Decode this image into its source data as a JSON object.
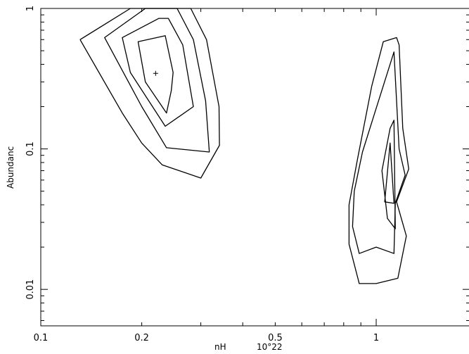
{
  "chart_data": {
    "type": "contour",
    "xlabel": "nH",
    "xlabel_unit": "10^22",
    "xlabel_unit_display": "10°22",
    "ylabel": "Abundanc",
    "x_scale": "log",
    "y_scale": "log",
    "xlim": [
      0.1,
      1.9
    ],
    "ylim": [
      0.0055,
      1.0
    ],
    "x_ticks": [
      {
        "value": 0.1,
        "label": "0.1"
      },
      {
        "value": 0.2,
        "label": "0.2"
      },
      {
        "value": 0.5,
        "label": "0.5"
      },
      {
        "value": 1,
        "label": "1"
      }
    ],
    "y_ticks": [
      {
        "value": 0.01,
        "label": "0.01"
      },
      {
        "value": 0.1,
        "label": "0.1"
      },
      {
        "value": 1,
        "label": "1"
      }
    ],
    "best_fit": {
      "marker": "+",
      "x": 0.22,
      "y": 0.345
    },
    "contours": [
      {
        "name": "left-inner",
        "closed": true,
        "points": [
          [
            0.195,
            0.58
          ],
          [
            0.235,
            0.64
          ],
          [
            0.248,
            0.35
          ],
          [
            0.245,
            0.26
          ],
          [
            0.237,
            0.18
          ],
          [
            0.205,
            0.3
          ],
          [
            0.195,
            0.58
          ]
        ]
      },
      {
        "name": "left-second",
        "closed": true,
        "points": [
          [
            0.175,
            0.62
          ],
          [
            0.225,
            0.85
          ],
          [
            0.24,
            0.85
          ],
          [
            0.265,
            0.55
          ],
          [
            0.285,
            0.2
          ],
          [
            0.235,
            0.145
          ],
          [
            0.185,
            0.35
          ],
          [
            0.175,
            0.62
          ]
        ]
      },
      {
        "name": "left-third",
        "closed": true,
        "points": [
          [
            0.155,
            0.62
          ],
          [
            0.205,
            1.0
          ],
          [
            0.255,
            1.0
          ],
          [
            0.285,
            0.6
          ],
          [
            0.31,
            0.22
          ],
          [
            0.318,
            0.095
          ],
          [
            0.237,
            0.102
          ],
          [
            0.2,
            0.2
          ],
          [
            0.155,
            0.62
          ]
        ]
      },
      {
        "name": "left-outer",
        "closed": false,
        "points": [
          [
            0.131,
            0.6
          ],
          [
            0.185,
            1.0
          ],
          [
            0.28,
            1.0
          ],
          [
            0.312,
            0.6
          ],
          [
            0.34,
            0.2
          ],
          [
            0.341,
            0.106
          ],
          [
            0.3,
            0.062
          ],
          [
            0.23,
            0.077
          ],
          [
            0.2,
            0.11
          ],
          [
            0.175,
            0.18
          ],
          [
            0.131,
            0.6
          ]
        ]
      },
      {
        "name": "right-inner",
        "closed": true,
        "points": [
          [
            1.06,
            0.042
          ],
          [
            1.1,
            0.11
          ],
          [
            1.13,
            0.041
          ],
          [
            1.06,
            0.042
          ]
        ]
      },
      {
        "name": "right-second",
        "closed": true,
        "points": [
          [
            1.13,
            0.16
          ],
          [
            1.14,
            0.027
          ],
          [
            1.08,
            0.032
          ],
          [
            1.04,
            0.07
          ],
          [
            1.1,
            0.14
          ],
          [
            1.13,
            0.16
          ]
        ]
      },
      {
        "name": "right-third",
        "closed": true,
        "points": [
          [
            1.13,
            0.49
          ],
          [
            1.17,
            0.1
          ],
          [
            1.22,
            0.065
          ],
          [
            1.14,
            0.041
          ],
          [
            1.13,
            0.018
          ],
          [
            1.0,
            0.02
          ],
          [
            0.89,
            0.018
          ],
          [
            0.85,
            0.028
          ],
          [
            0.86,
            0.05
          ],
          [
            0.91,
            0.095
          ],
          [
            0.99,
            0.18
          ],
          [
            1.13,
            0.49
          ]
        ]
      },
      {
        "name": "right-outer",
        "closed": true,
        "points": [
          [
            1.05,
            0.58
          ],
          [
            1.15,
            0.62
          ],
          [
            1.17,
            0.55
          ],
          [
            1.2,
            0.14
          ],
          [
            1.25,
            0.072
          ],
          [
            1.15,
            0.042
          ],
          [
            1.23,
            0.024
          ],
          [
            1.16,
            0.012
          ],
          [
            1.0,
            0.011
          ],
          [
            0.89,
            0.011
          ],
          [
            0.83,
            0.021
          ],
          [
            0.83,
            0.04
          ],
          [
            0.88,
            0.085
          ],
          [
            0.97,
            0.28
          ],
          [
            1.05,
            0.58
          ]
        ]
      }
    ]
  }
}
